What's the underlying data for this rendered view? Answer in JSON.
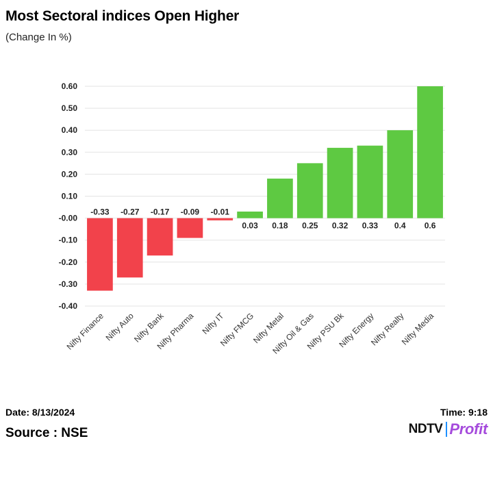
{
  "header": {
    "title": "Most Sectoral indices Open Higher",
    "subtitle": "(Change In %)"
  },
  "footer": {
    "date": "Date: 8/13/2024",
    "time": "Time: 9:18",
    "source": "Source : NSE",
    "logo_left": "NDTV",
    "logo_right": "Profit"
  },
  "colors": {
    "negative": "#f2424b",
    "positive": "#5ec942",
    "grid": "#e3e3e3",
    "logo_accent": "#a54bdc"
  },
  "chart_data": {
    "type": "bar",
    "title": "Most Sectoral indices Open Higher",
    "ylabel": "(Change In %)",
    "xlabel": "",
    "categories": [
      "Nifty Finance",
      "Nifty Auto",
      "Nifty Bank",
      "Nifty Pharma",
      "Nifty IT",
      "Nifty FMCG",
      "Nifty Metal",
      "Nifty Oil & Gas",
      "Nifty PSU Bk",
      "Nifty Energy",
      "Nifty Realty",
      "Nifty Media"
    ],
    "values": [
      -0.33,
      -0.27,
      -0.17,
      -0.09,
      -0.01,
      0.03,
      0.18,
      0.25,
      0.32,
      0.33,
      0.4,
      0.6
    ],
    "data_labels": [
      "-0.33",
      "-0.27",
      "-0.17",
      "-0.09",
      "-0.01",
      "0.03",
      "0.18",
      "0.25",
      "0.32",
      "0.33",
      "0.4",
      "0.6"
    ],
    "ylim": [
      -0.4,
      0.6
    ],
    "yticks": [
      0.6,
      0.5,
      0.4,
      0.3,
      0.2,
      0.1,
      0.0,
      -0.1,
      -0.2,
      -0.3,
      -0.4
    ],
    "ytick_labels": [
      "0.60",
      "0.50",
      "0.40",
      "0.30",
      "0.20",
      "0.10",
      "-0.00",
      "-0.10",
      "-0.20",
      "-0.30",
      "-0.40"
    ],
    "grid": true,
    "legend": "none"
  }
}
